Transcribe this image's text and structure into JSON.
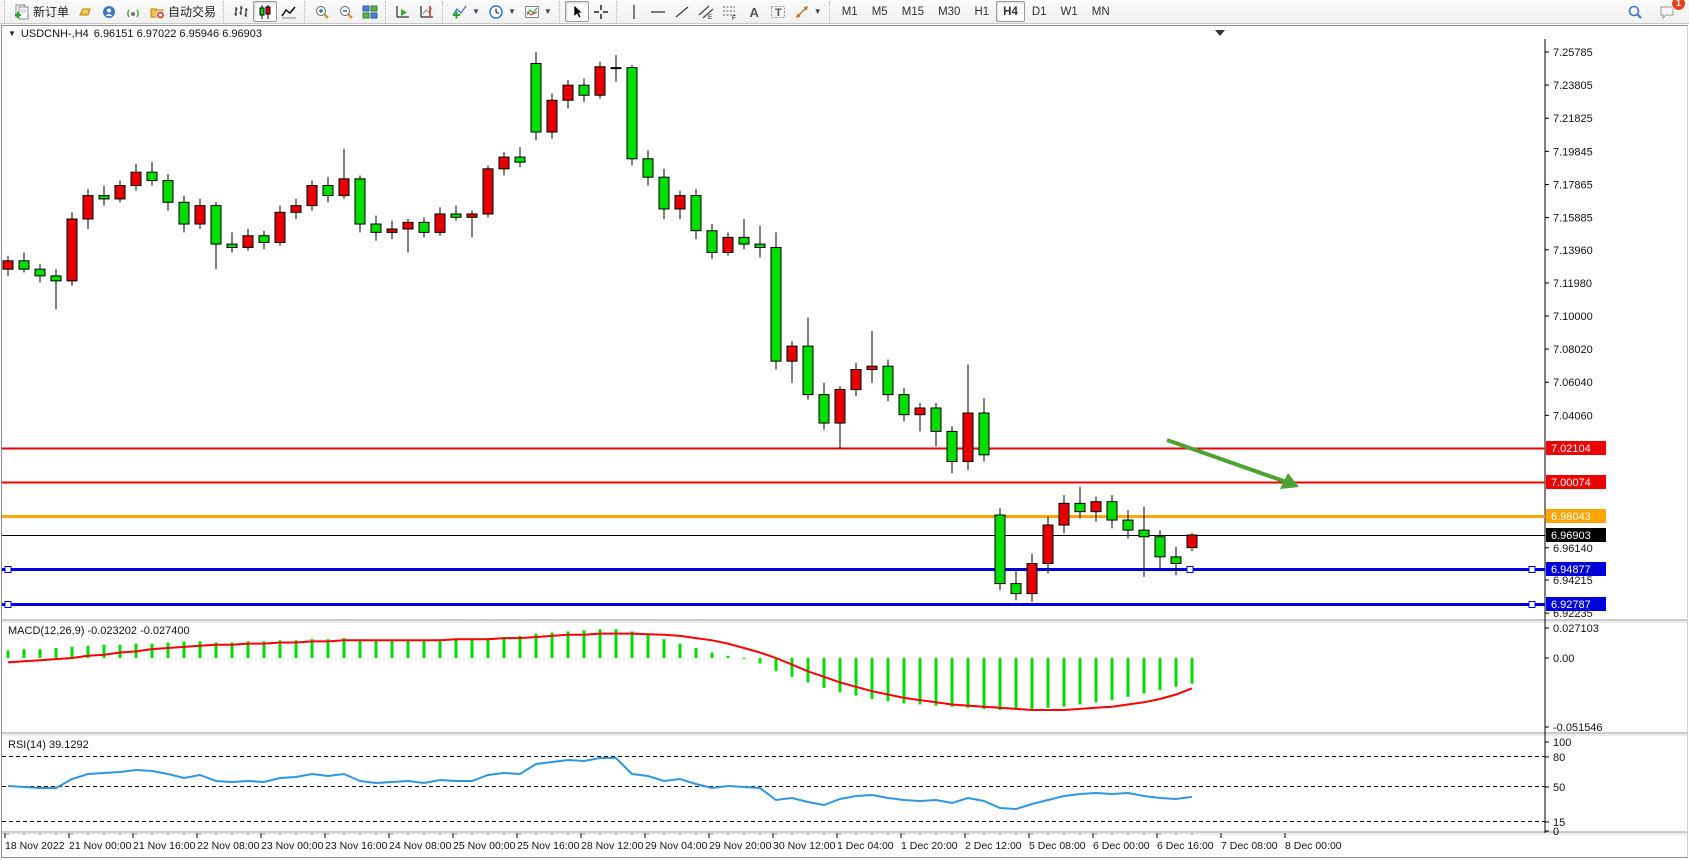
{
  "toolbar": {
    "new_order_label": "新订单",
    "autotrade_label": "自动交易",
    "groups": [
      {
        "items": [
          {
            "name": "new-order-button",
            "icon": "new-order",
            "label_key": "new_order_label"
          },
          {
            "name": "deposit-button",
            "icon": "ingot"
          },
          {
            "name": "community-button",
            "icon": "community"
          },
          {
            "name": "signals-button",
            "icon": "signals"
          },
          {
            "name": "autotrade-button",
            "icon": "autotrade",
            "label_key": "autotrade_label"
          }
        ]
      },
      {
        "items": [
          {
            "name": "bar-chart-button",
            "icon": "chart-bars"
          },
          {
            "name": "candlestick-chart-button",
            "icon": "chart-candles",
            "active": true
          },
          {
            "name": "line-chart-button",
            "icon": "chart-line"
          }
        ]
      },
      {
        "items": [
          {
            "name": "zoom-in-button",
            "icon": "zoom-in"
          },
          {
            "name": "zoom-out-button",
            "icon": "zoom-out"
          },
          {
            "name": "tile-windows-button",
            "icon": "tile-windows"
          }
        ]
      },
      {
        "items": [
          {
            "name": "auto-scroll-button",
            "icon": "auto-scroll"
          },
          {
            "name": "chart-shift-button",
            "icon": "chart-shift"
          }
        ]
      },
      {
        "items": [
          {
            "name": "indicators-button",
            "icon": "indicators",
            "dropdown": true
          },
          {
            "name": "periods-button",
            "icon": "clock",
            "dropdown": true
          },
          {
            "name": "templates-button",
            "icon": "template",
            "dropdown": true
          }
        ]
      },
      {
        "items": [
          {
            "name": "cursor-button",
            "icon": "cursor",
            "active": true
          },
          {
            "name": "crosshair-button",
            "icon": "crosshair"
          }
        ]
      },
      {
        "items": [
          {
            "name": "vertical-line-button",
            "icon": "vline"
          },
          {
            "name": "horizontal-line-button",
            "icon": "hline"
          },
          {
            "name": "trendline-button",
            "icon": "tline"
          },
          {
            "name": "equidistant-channel-button",
            "icon": "channel"
          },
          {
            "name": "fibonacci-button",
            "icon": "fibo"
          },
          {
            "name": "text-button",
            "icon": "textA"
          },
          {
            "name": "text-label-button",
            "icon": "textT"
          },
          {
            "name": "arrows-button",
            "icon": "shapes",
            "dropdown": true
          }
        ]
      }
    ],
    "timeframes": [
      "M1",
      "M5",
      "M15",
      "M30",
      "H1",
      "H4",
      "D1",
      "W1",
      "MN"
    ],
    "active_timeframe": "H4",
    "notification_count": "1"
  },
  "chart": {
    "title": "USDCNH-,H4",
    "ohlc_text": "6.96151 6.97022 6.95946 6.96903"
  },
  "chart_data": {
    "type": "candlestick",
    "symbol": "USDCNH",
    "timeframe": "H4",
    "price_axis_labels": [
      "7.25785",
      "7.23805",
      "7.21825",
      "7.19845",
      "7.17865",
      "7.15885",
      "7.13960",
      "7.11980",
      "7.10000",
      "7.08020",
      "7.06040",
      "7.04060",
      "6.96140",
      "6.94215",
      "6.92235"
    ],
    "hlines": [
      {
        "price": 7.02104,
        "label": "7.02104",
        "color": "#ee0000",
        "width": 2,
        "handles": false
      },
      {
        "price": 7.00074,
        "label": "7.00074",
        "color": "#ee0000",
        "width": 2,
        "handles": false
      },
      {
        "price": 6.98043,
        "label": "6.98043",
        "color": "#ffa500",
        "width": 3,
        "handles": false
      },
      {
        "price": 6.96903,
        "label": "6.96903",
        "color": "#000000",
        "width": 1,
        "handles": false
      },
      {
        "price": 6.94877,
        "label": "6.94877",
        "color": "#0000dd",
        "width": 3,
        "handles": true
      },
      {
        "price": 6.92787,
        "label": "6.92787",
        "color": "#0000dd",
        "width": 3,
        "handles": true
      }
    ],
    "candles": [
      [
        7.128,
        7.136,
        7.124,
        7.133
      ],
      [
        7.133,
        7.138,
        7.126,
        7.128
      ],
      [
        7.128,
        7.131,
        7.12,
        7.124
      ],
      [
        7.124,
        7.128,
        7.104,
        7.121
      ],
      [
        7.121,
        7.162,
        7.118,
        7.158
      ],
      [
        7.158,
        7.176,
        7.152,
        7.172
      ],
      [
        7.172,
        7.178,
        7.166,
        7.17
      ],
      [
        7.17,
        7.181,
        7.168,
        7.178
      ],
      [
        7.178,
        7.191,
        7.175,
        7.186
      ],
      [
        7.186,
        7.192,
        7.178,
        7.181
      ],
      [
        7.181,
        7.185,
        7.163,
        7.168
      ],
      [
        7.168,
        7.172,
        7.15,
        7.155
      ],
      [
        7.155,
        7.17,
        7.152,
        7.166
      ],
      [
        7.166,
        7.168,
        7.128,
        7.143
      ],
      [
        7.143,
        7.15,
        7.138,
        7.141
      ],
      [
        7.141,
        7.152,
        7.139,
        7.148
      ],
      [
        7.148,
        7.151,
        7.14,
        7.144
      ],
      [
        7.144,
        7.166,
        7.142,
        7.162
      ],
      [
        7.162,
        7.17,
        7.158,
        7.166
      ],
      [
        7.166,
        7.181,
        7.163,
        7.178
      ],
      [
        7.178,
        7.183,
        7.168,
        7.172
      ],
      [
        7.172,
        7.2,
        7.17,
        7.182
      ],
      [
        7.182,
        7.184,
        7.15,
        7.155
      ],
      [
        7.155,
        7.16,
        7.145,
        7.15
      ],
      [
        7.15,
        7.157,
        7.146,
        7.152
      ],
      [
        7.152,
        7.158,
        7.138,
        7.156
      ],
      [
        7.156,
        7.159,
        7.147,
        7.15
      ],
      [
        7.15,
        7.165,
        7.148,
        7.161
      ],
      [
        7.161,
        7.166,
        7.157,
        7.159
      ],
      [
        7.159,
        7.163,
        7.147,
        7.161
      ],
      [
        7.161,
        7.19,
        7.159,
        7.188
      ],
      [
        7.188,
        7.198,
        7.184,
        7.195
      ],
      [
        7.195,
        7.201,
        7.189,
        7.192
      ],
      [
        7.251,
        7.2578,
        7.205,
        7.21
      ],
      [
        7.21,
        7.233,
        7.206,
        7.229
      ],
      [
        7.229,
        7.241,
        7.224,
        7.238
      ],
      [
        7.238,
        7.242,
        7.228,
        7.232
      ],
      [
        7.232,
        7.252,
        7.23,
        7.249
      ],
      [
        7.248,
        7.256,
        7.24,
        7.2485
      ],
      [
        7.2485,
        7.25,
        7.19,
        7.194
      ],
      [
        7.194,
        7.199,
        7.178,
        7.183
      ],
      [
        7.183,
        7.188,
        7.158,
        7.164
      ],
      [
        7.164,
        7.175,
        7.158,
        7.172
      ],
      [
        7.172,
        7.176,
        7.146,
        7.151
      ],
      [
        7.151,
        7.155,
        7.134,
        7.138
      ],
      [
        7.138,
        7.15,
        7.136,
        7.147
      ],
      [
        7.147,
        7.158,
        7.14,
        7.143
      ],
      [
        7.143,
        7.154,
        7.135,
        7.141
      ],
      [
        7.141,
        7.15,
        7.068,
        7.073
      ],
      [
        7.073,
        7.085,
        7.06,
        7.082
      ],
      [
        7.082,
        7.099,
        7.05,
        7.053
      ],
      [
        7.053,
        7.06,
        7.032,
        7.036
      ],
      [
        7.036,
        7.058,
        7.021,
        7.056
      ],
      [
        7.056,
        7.072,
        7.052,
        7.068
      ],
      [
        7.068,
        7.091,
        7.06,
        7.07
      ],
      [
        7.07,
        7.074,
        7.049,
        7.053
      ],
      [
        7.053,
        7.057,
        7.037,
        7.041
      ],
      [
        7.041,
        7.048,
        7.031,
        7.045
      ],
      [
        7.045,
        7.048,
        7.022,
        7.031
      ],
      [
        7.031,
        7.034,
        7.006,
        7.013
      ],
      [
        7.013,
        7.071,
        7.008,
        7.042
      ],
      [
        7.042,
        7.051,
        7.013,
        7.017
      ],
      [
        6.981,
        6.985,
        6.936,
        6.94
      ],
      [
        6.94,
        6.948,
        6.93,
        6.934
      ],
      [
        6.934,
        6.958,
        6.929,
        6.952
      ],
      [
        6.952,
        6.98,
        6.946,
        6.975
      ],
      [
        6.975,
        6.993,
        6.97,
        6.988
      ],
      [
        6.988,
        6.998,
        6.979,
        6.983
      ],
      [
        6.983,
        6.992,
        6.977,
        6.989
      ],
      [
        6.989,
        6.993,
        6.973,
        6.978
      ],
      [
        6.978,
        6.984,
        6.967,
        6.972
      ],
      [
        6.972,
        6.986,
        6.944,
        6.968
      ],
      [
        6.968,
        6.972,
        6.949,
        6.956
      ],
      [
        6.956,
        6.962,
        6.945,
        6.952
      ],
      [
        6.96151,
        6.97022,
        6.95946,
        6.96903
      ]
    ],
    "up_color": "#e60000",
    "down_color": "#00dc00",
    "macd": {
      "label": "MACD(12,26,9) -0.023202 -0.027400",
      "axis_labels": [
        "0.027103",
        "0.00",
        "-0.051546"
      ],
      "histogram": [
        0.007,
        0.008,
        0.008,
        0.009,
        0.01,
        0.011,
        0.012,
        0.012,
        0.013,
        0.013,
        0.014,
        0.015,
        0.015,
        0.014,
        0.014,
        0.015,
        0.015,
        0.016,
        0.016,
        0.017,
        0.017,
        0.018,
        0.017,
        0.016,
        0.016,
        0.016,
        0.016,
        0.017,
        0.017,
        0.017,
        0.018,
        0.019,
        0.02,
        0.022,
        0.023,
        0.024,
        0.025,
        0.026,
        0.026,
        0.024,
        0.021,
        0.017,
        0.013,
        0.009,
        0.005,
        0.002,
        -0.001,
        -0.005,
        -0.012,
        -0.017,
        -0.022,
        -0.027,
        -0.031,
        -0.034,
        -0.037,
        -0.039,
        -0.041,
        -0.042,
        -0.043,
        -0.044,
        -0.045,
        -0.046,
        -0.047,
        -0.047,
        -0.046,
        -0.045,
        -0.044,
        -0.042,
        -0.04,
        -0.038,
        -0.035,
        -0.032,
        -0.029,
        -0.026,
        -0.0232
      ],
      "signal": [
        -0.004,
        -0.003,
        -0.002,
        -0.001,
        0.0,
        0.002,
        0.003,
        0.005,
        0.006,
        0.008,
        0.009,
        0.01,
        0.011,
        0.012,
        0.012,
        0.013,
        0.013,
        0.014,
        0.014,
        0.015,
        0.015,
        0.016,
        0.016,
        0.016,
        0.016,
        0.016,
        0.016,
        0.016,
        0.017,
        0.017,
        0.017,
        0.018,
        0.018,
        0.019,
        0.02,
        0.021,
        0.021,
        0.022,
        0.022,
        0.022,
        0.0215,
        0.021,
        0.02,
        0.018,
        0.016,
        0.013,
        0.009,
        0.005,
        0.0,
        -0.006,
        -0.012,
        -0.017,
        -0.022,
        -0.026,
        -0.03,
        -0.033,
        -0.036,
        -0.038,
        -0.04,
        -0.042,
        -0.043,
        -0.044,
        -0.045,
        -0.046,
        -0.047,
        -0.047,
        -0.047,
        -0.046,
        -0.045,
        -0.044,
        -0.042,
        -0.04,
        -0.037,
        -0.033,
        -0.0274
      ],
      "hist_color": "#00dc00",
      "signal_color": "#ff0000"
    },
    "rsi": {
      "label": "RSI(14) 39.1292",
      "axis_labels": [
        "100",
        "80",
        "50",
        "15",
        "0"
      ],
      "levels": [
        80,
        50,
        15
      ],
      "values": [
        50,
        49,
        48,
        48,
        57,
        62,
        63,
        64,
        66,
        65,
        62,
        58,
        61,
        55,
        54,
        55,
        54,
        58,
        59,
        62,
        60,
        62,
        55,
        53,
        54,
        55,
        53,
        56,
        55,
        55,
        61,
        63,
        62,
        72,
        74,
        76,
        75,
        78,
        78,
        62,
        60,
        55,
        57,
        52,
        48,
        50,
        49,
        48,
        36,
        38,
        34,
        31,
        37,
        40,
        41,
        38,
        36,
        35,
        36,
        33,
        38,
        35,
        28,
        27,
        32,
        36,
        40,
        42,
        43,
        42,
        43,
        40,
        38,
        37,
        39.13
      ],
      "line_color": "#2f96e0"
    },
    "dates": [
      "18 Nov 2022",
      "21 Nov 00:00",
      "21 Nov 16:00",
      "22 Nov 08:00",
      "23 Nov 00:00",
      "23 Nov 16:00",
      "24 Nov 08:00",
      "25 Nov 00:00",
      "25 Nov 16:00",
      "28 Nov 12:00",
      "29 Nov 04:00",
      "29 Nov 20:00",
      "30 Nov 12:00",
      "1 Dec 04:00",
      "1 Dec 20:00",
      "2 Dec 12:00",
      "5 Dec 08:00",
      "6 Dec 00:00",
      "6 Dec 16:00",
      "7 Dec 08:00",
      "8 Dec 00:00"
    ],
    "arrow": {
      "color": "#4ca332"
    }
  }
}
